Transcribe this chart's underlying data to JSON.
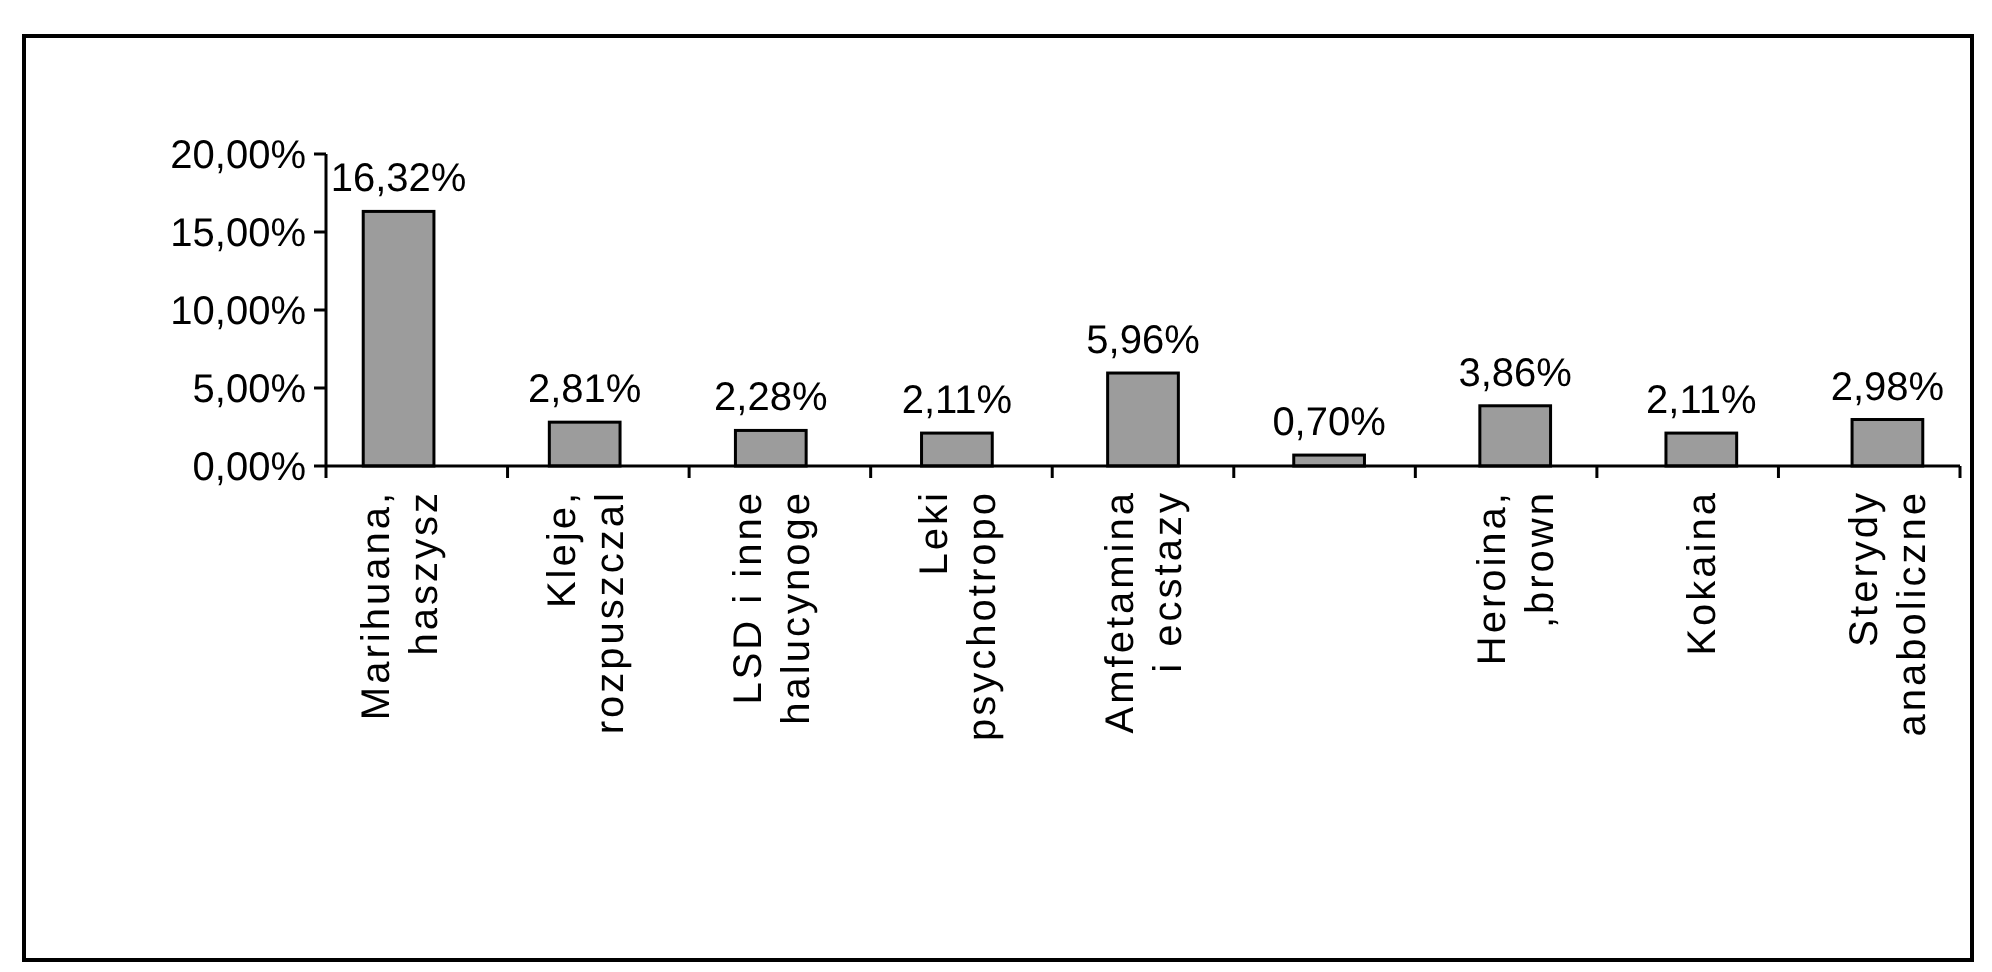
{
  "chart_data": {
    "type": "bar",
    "categories": [
      "Marihuana,\nhaszysz",
      "Kleje,\nrozpuszczal",
      "LSD i inne\nhalucynoge",
      "Leki\npsychotropo",
      "Amfetamina\ni ecstazy",
      null,
      "Heroina,\n,brown",
      "Kokaina",
      "Sterydy\nanaboliczne"
    ],
    "values": [
      16.32,
      2.81,
      2.28,
      2.11,
      5.96,
      0.7,
      3.86,
      2.11,
      2.98
    ],
    "value_labels": [
      "16,32%",
      "2,81%",
      "2,28%",
      "2,11%",
      "5,96%",
      "0,70%",
      "3,86%",
      "2,11%",
      "2,98%"
    ],
    "color": "#9c9c9c",
    "ylim": [
      0,
      20
    ],
    "yticks": [
      {
        "value": 0,
        "label": "0,00%"
      },
      {
        "value": 5,
        "label": "5,00%"
      },
      {
        "value": 10,
        "label": "10,00%"
      },
      {
        "value": 15,
        "label": "15,00%"
      },
      {
        "value": 20,
        "label": "20,00%"
      }
    ],
    "grid": false
  }
}
